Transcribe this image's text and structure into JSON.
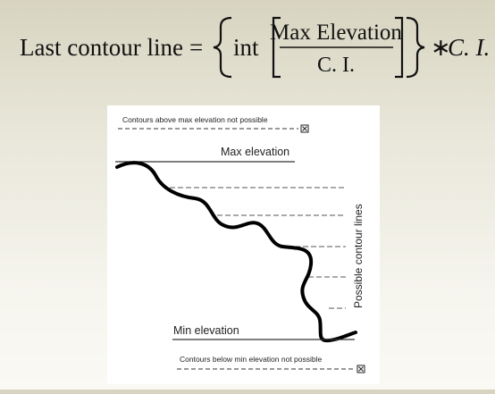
{
  "formula": {
    "lhs": "Last contour line",
    "equals": "=",
    "int": "int",
    "numerator": "Max Elevation",
    "denominator": "C. I.",
    "times": "∗",
    "ci": "C. I."
  },
  "diagram": {
    "above_note": "Contours above max elevation not possible",
    "max_label": "Max elevation",
    "min_label": "Min elevation",
    "below_note": "Contours below min elevation not possible",
    "side_label": "Possible contour lines"
  }
}
